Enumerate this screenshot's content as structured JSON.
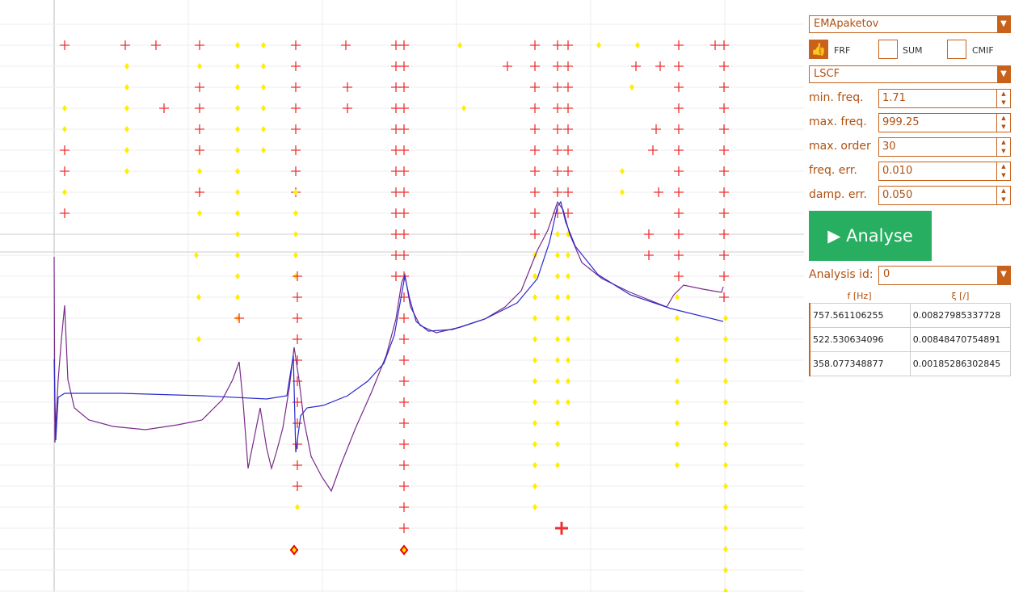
{
  "controls": {
    "method_select": "EMApaketov",
    "checkboxes": [
      {
        "label": "FRF",
        "checked": true
      },
      {
        "label": "SUM",
        "checked": false
      },
      {
        "label": "CMIF",
        "checked": false
      }
    ],
    "algorithm_select": "LSCF",
    "fields": [
      {
        "label": "min. freq.",
        "value": "1.71"
      },
      {
        "label": "max. freq.",
        "value": "999.25"
      },
      {
        "label": "max. order",
        "value": "30"
      },
      {
        "label": "freq. err.",
        "value": "0.010"
      },
      {
        "label": "damp. err.",
        "value": "0.050"
      }
    ],
    "button": "Analyse",
    "analysis_id": {
      "label": "Analysis id:",
      "value": "0"
    }
  },
  "table": {
    "headers": [
      "f [Hz]",
      "ξ [/]"
    ],
    "rows": [
      [
        "757.561106255",
        "0.00827985337728"
      ],
      [
        "522.530634096",
        "0.00848470754891"
      ],
      [
        "358.077348877",
        "0.00185286302845"
      ]
    ]
  }
}
